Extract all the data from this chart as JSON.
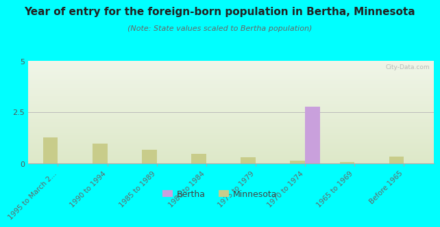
{
  "title": "Year of entry for the foreign-born population in Bertha, Minnesota",
  "subtitle": "(Note: State values scaled to Bertha population)",
  "categories": [
    "1995 to March 2...",
    "1990 to 1994",
    "1985 to 1989",
    "1980 to 1984",
    "1975 to 1979",
    "1970 to 1974",
    "1965 to 1969",
    "Before 1965"
  ],
  "bertha_values": [
    0,
    0,
    0,
    0,
    0,
    2.75,
    0,
    0
  ],
  "minnesota_values": [
    1.25,
    0.95,
    0.65,
    0.45,
    0.28,
    0.12,
    0.06,
    0.32
  ],
  "bertha_color": "#c9a0dc",
  "minnesota_color": "#c8cc8a",
  "background_color": "#00ffff",
  "plot_bg_top_color": "#dde8c8",
  "plot_bg_bottom_color": "#f0f5e8",
  "ylim": [
    0,
    5
  ],
  "yticks": [
    0,
    2.5,
    5
  ],
  "bar_width": 0.3,
  "watermark": "City-Data.com",
  "legend_bertha": "Bertha",
  "legend_minnesota": "Minnesota",
  "title_fontsize": 11,
  "subtitle_fontsize": 8,
  "tick_fontsize": 7.5,
  "ytick_fontsize": 8
}
